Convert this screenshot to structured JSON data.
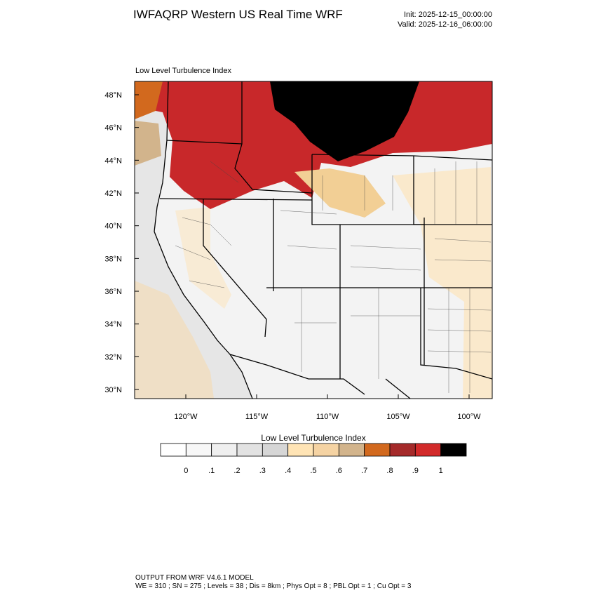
{
  "header": {
    "title": "IWFAQRP Western US Real Time WRF",
    "init": "Init: 2025-12-15_00:00:00",
    "valid": "Valid: 2025-12-16_06:00:00"
  },
  "map": {
    "subtitle": "Low Level Turbulence Index",
    "lat_labels": [
      "48°N",
      "46°N",
      "44°N",
      "42°N",
      "40°N",
      "38°N",
      "36°N",
      "34°N",
      "32°N",
      "30°N"
    ],
    "lon_labels": [
      "120°W",
      "115°W",
      "110°W",
      "105°W",
      "100°W"
    ]
  },
  "colorbar": {
    "title": "Low Level Turbulence Index",
    "colors": [
      "#ffffff",
      "#f7f7f7",
      "#efefef",
      "#e2e2e2",
      "#d6d6d6",
      "#ffe4b5",
      "#f5d3a3",
      "#d2b48c",
      "#d2691e",
      "#a52a2a",
      "#d22a2a",
      "#000000"
    ],
    "labels": [
      "0",
      ".1",
      ".2",
      ".3",
      ".4",
      ".5",
      ".6",
      ".7",
      ".8",
      ".9",
      "1"
    ]
  },
  "footer": {
    "line1": "OUTPUT FROM WRF V4.6.1 MODEL",
    "line2": "WE = 310 ; SN = 275 ; Levels = 38 ; Dis = 8km ; Phys Opt = 8 ; PBL Opt = 1 ; Cu Opt = 3"
  }
}
